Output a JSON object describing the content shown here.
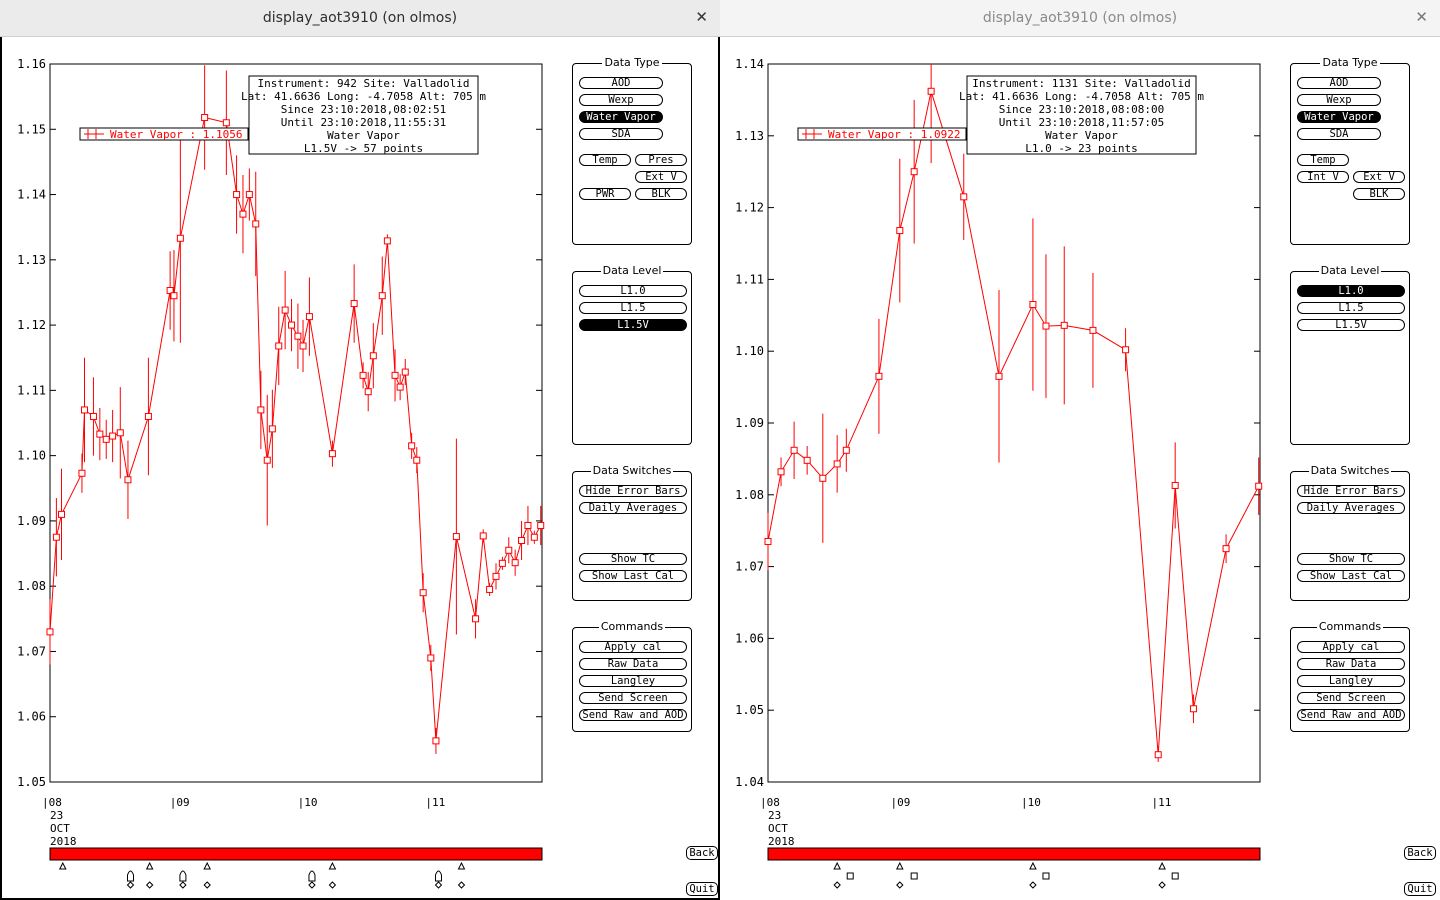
{
  "windows": [
    {
      "title": "display_aot3910 (on olmos)",
      "info": [
        "Instrument: 942 Site: Valladolid",
        "Lat: 41.6636 Long: -4.7058 Alt: 705 m",
        "Since 23:10:2018,08:02:51",
        "Until 23:10:2018,11:55:31",
        "Water Vapor",
        "L1.5V -> 57 points"
      ],
      "legend": "Water Vapor : 1.1056 ±",
      "data_type": {
        "title": "Data Type",
        "buttons": [
          "AOD",
          "Wexp",
          "Water Vapor",
          "SDA"
        ],
        "selected": "Water Vapor",
        "extra": [
          "Temp",
          "Pres",
          "Ext V",
          "PWR",
          "BLK"
        ]
      },
      "data_level": {
        "title": "Data Level",
        "buttons": [
          "L1.0",
          "L1.5",
          "L1.5V"
        ],
        "selected": "L1.5V"
      },
      "data_switches": {
        "title": "Data Switches",
        "buttons": [
          "Hide Error Bars",
          "Daily Averages",
          "Show TC",
          "Show Last Cal"
        ]
      },
      "commands": {
        "title": "Commands",
        "buttons": [
          "Apply cal",
          "Raw Data",
          "Langley",
          "Send Screen",
          "Send Raw and AOD"
        ]
      },
      "back_label": "Back",
      "quit_label": "Quit",
      "chart_data": {
        "type": "line",
        "ylim": [
          1.05,
          1.16
        ],
        "yticks": [
          "1.05",
          "1.06",
          "1.07",
          "1.08",
          "1.09",
          "1.10",
          "1.11",
          "1.12",
          "1.13",
          "1.14",
          "1.15",
          "1.16"
        ],
        "xlim": [
          8.0,
          11.85
        ],
        "xticks": [
          {
            "v": 8,
            "label": "|08"
          },
          {
            "v": 9,
            "label": "|09"
          },
          {
            "v": 10,
            "label": "|10"
          },
          {
            "v": 11,
            "label": "|11"
          }
        ],
        "date_label": [
          "23",
          "OCT",
          "2018"
        ],
        "series": [
          {
            "color": "#ff0000",
            "points": [
              [
                8.0,
                1.073,
                0.005
              ],
              [
                8.05,
                1.0875,
                0.006
              ],
              [
                8.09,
                1.091,
                0.007
              ],
              [
                8.25,
                1.0973,
                0.003
              ],
              [
                8.27,
                1.107,
                0.008
              ],
              [
                8.34,
                1.106,
                0.006
              ],
              [
                8.39,
                1.1033,
                0.004
              ],
              [
                8.44,
                1.1025,
                0.003
              ],
              [
                8.49,
                1.103,
                0.004
              ],
              [
                8.55,
                1.1035,
                0.007
              ],
              [
                8.61,
                1.0963,
                0.006
              ],
              [
                8.77,
                1.106,
                0.009
              ],
              [
                8.94,
                1.1253,
                0.006
              ],
              [
                8.97,
                1.1245,
                0.007
              ],
              [
                9.02,
                1.1333,
                0.016
              ],
              [
                9.21,
                1.1518,
                0.008
              ],
              [
                9.38,
                1.151,
                0.008
              ],
              [
                9.46,
                1.14,
                0.006
              ],
              [
                9.51,
                1.137,
                0.006
              ],
              [
                9.56,
                1.14,
                0.004
              ],
              [
                9.61,
                1.1355,
                0.008
              ],
              [
                9.65,
                1.107,
                0.006
              ],
              [
                9.7,
                1.0993,
                0.01
              ],
              [
                9.74,
                1.1041,
                0.006
              ],
              [
                9.79,
                1.1168,
                0.006
              ],
              [
                9.84,
                1.1223,
                0.006
              ],
              [
                9.89,
                1.12,
                0.004
              ],
              [
                9.94,
                1.1183,
                0.005
              ],
              [
                9.98,
                1.1168,
                0.004
              ],
              [
                10.03,
                1.1213,
                0.006
              ],
              [
                10.21,
                1.1003,
                0.002
              ],
              [
                10.38,
                1.1233,
                0.006
              ],
              [
                10.45,
                1.1123,
                0.002
              ],
              [
                10.49,
                1.1098,
                0.003
              ],
              [
                10.53,
                1.1153,
                0.005
              ],
              [
                10.6,
                1.1245,
                0.006
              ],
              [
                10.64,
                1.1329,
                0.001
              ],
              [
                10.7,
                1.1123,
                0.004
              ],
              [
                10.74,
                1.1105,
                0.002
              ],
              [
                10.78,
                1.1128,
                0.002
              ],
              [
                10.83,
                1.1015,
                0.002
              ],
              [
                10.87,
                1.0993,
                0.002
              ],
              [
                10.92,
                1.079,
                0.003
              ],
              [
                10.98,
                1.069,
                0.002
              ],
              [
                11.02,
                1.0563,
                0.002
              ],
              [
                11.18,
                1.0876,
                0.015
              ],
              [
                11.33,
                1.075,
                0.003
              ],
              [
                11.39,
                1.0877,
                0.001
              ],
              [
                11.44,
                1.0795,
                0.001
              ],
              [
                11.49,
                1.0815,
                0.002
              ],
              [
                11.54,
                1.0835,
                0.001
              ],
              [
                11.59,
                1.0855,
                0.002
              ],
              [
                11.64,
                1.0836,
                0.002
              ],
              [
                11.69,
                1.087,
                0.003
              ],
              [
                11.74,
                1.0893,
                0.003
              ],
              [
                11.79,
                1.0875,
                0.001
              ],
              [
                11.84,
                1.0893,
                0.003
              ]
            ]
          }
        ]
      },
      "marks": {
        "row1_triangles": [
          8.1,
          8.78,
          9.23,
          10.21,
          11.22
        ],
        "row2_bullets": [
          8.63,
          9.04,
          10.05,
          11.04
        ],
        "row3_diamonds": [
          8.63,
          8.78,
          9.04,
          9.23,
          10.05,
          10.21,
          11.04,
          11.22
        ],
        "row2_squares": []
      }
    },
    {
      "title": "display_aot3910 (on olmos)",
      "info": [
        "Instrument: 1131 Site: Valladolid",
        "Lat: 41.6636 Long: -4.7058 Alt: 705 m",
        "Since 23:10:2018,08:08:00",
        "Until 23:10:2018,11:57:05",
        "Water Vapor",
        "L1.0 -> 23 points"
      ],
      "legend": "Water Vapor : 1.0922 ±",
      "data_type": {
        "title": "Data Type",
        "buttons": [
          "AOD",
          "Wexp",
          "Water Vapor",
          "SDA"
        ],
        "selected": "Water Vapor",
        "extra": [
          "Temp",
          "Int V",
          "Ext V",
          "BLK"
        ]
      },
      "data_level": {
        "title": "Data Level",
        "buttons": [
          "L1.0",
          "L1.5",
          "L1.5V"
        ],
        "selected": "L1.0"
      },
      "data_switches": {
        "title": "Data Switches",
        "buttons": [
          "Hide Error Bars",
          "Daily Averages",
          "Show TC",
          "Show Last Cal"
        ]
      },
      "commands": {
        "title": "Commands",
        "buttons": [
          "Apply cal",
          "Raw Data",
          "Langley",
          "Send Screen",
          "Send Raw and AOD"
        ]
      },
      "back_label": "Back",
      "quit_label": "Quit",
      "chart_data": {
        "type": "line",
        "ylim": [
          1.04,
          1.14
        ],
        "yticks": [
          "1.04",
          "1.05",
          "1.06",
          "1.07",
          "1.08",
          "1.09",
          "1.10",
          "1.11",
          "1.12",
          "1.13",
          "1.14"
        ],
        "xlim": [
          8.0,
          11.77
        ],
        "xticks": [
          {
            "v": 8,
            "label": "|08"
          },
          {
            "v": 9,
            "label": "|09"
          },
          {
            "v": 10,
            "label": "|10"
          },
          {
            "v": 11,
            "label": "|11"
          }
        ],
        "date_label": [
          "23",
          "OCT",
          "2018"
        ],
        "series": [
          {
            "color": "#ff0000",
            "points": [
              [
                8.0,
                1.0735,
                0.004
              ],
              [
                8.1,
                1.0832,
                0.002
              ],
              [
                8.2,
                1.0862,
                0.004
              ],
              [
                8.3,
                1.0848,
                0.002
              ],
              [
                8.42,
                1.0823,
                0.009
              ],
              [
                8.53,
                1.0843,
                0.004
              ],
              [
                8.6,
                1.0862,
                0.003
              ],
              [
                8.85,
                1.0965,
                0.008
              ],
              [
                9.01,
                1.1168,
                0.01
              ],
              [
                9.12,
                1.125,
                0.01
              ],
              [
                9.25,
                1.1362,
                0.01
              ],
              [
                9.5,
                1.1215,
                0.006
              ],
              [
                9.77,
                1.0965,
                0.012
              ],
              [
                10.03,
                1.1065,
                0.012
              ],
              [
                10.13,
                1.1035,
                0.01
              ],
              [
                10.27,
                1.1036,
                0.011
              ],
              [
                10.49,
                1.1029,
                0.008
              ],
              [
                10.74,
                1.1002,
                0.003
              ],
              [
                10.99,
                1.0438,
                0.001
              ],
              [
                11.12,
                1.0813,
                0.006
              ],
              [
                11.26,
                1.0502,
                0.002
              ],
              [
                11.51,
                1.0725,
                0.002
              ],
              [
                11.76,
                1.0812,
                0.004
              ]
            ]
          }
        ]
      },
      "marks": {
        "row1_triangles": [
          8.53,
          9.01,
          10.03,
          11.02
        ],
        "row2_bullets": [],
        "row3_diamonds": [
          8.53,
          9.01,
          10.03,
          11.02
        ],
        "row2_squares": [
          8.63,
          9.12,
          10.13,
          11.12
        ]
      }
    }
  ]
}
